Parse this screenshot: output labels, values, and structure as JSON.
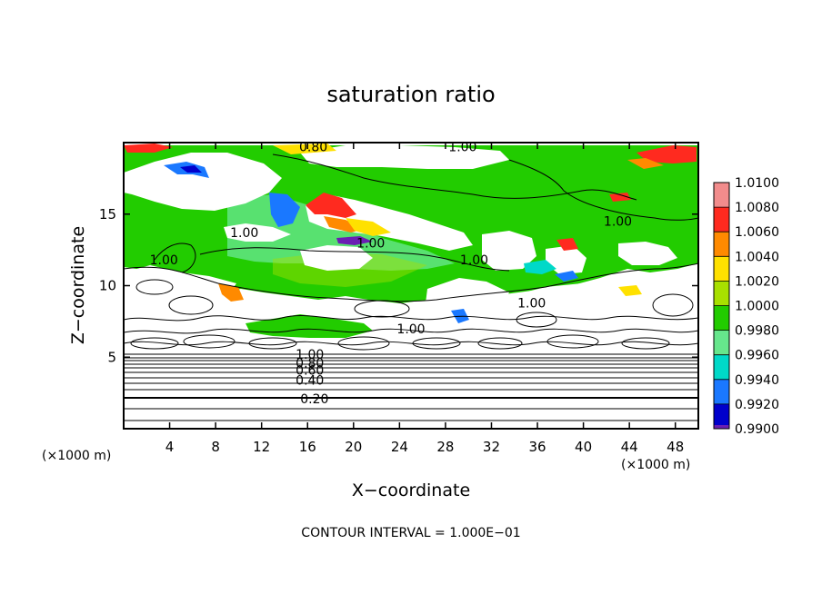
{
  "chart_data": {
    "type": "heatmap",
    "title": "saturation ratio",
    "xlabel": "X−coordinate",
    "ylabel": "Z−coordinate",
    "x_unit_left": "(×1000 m)",
    "x_unit_right": "(×1000 m)",
    "xlim": [
      0,
      50
    ],
    "ylim": [
      0,
      20
    ],
    "x_ticks": [
      4,
      8,
      12,
      16,
      20,
      24,
      28,
      32,
      36,
      40,
      44,
      48
    ],
    "y_ticks": [
      5,
      10,
      15
    ],
    "colorbar": {
      "levels": [
        "1.0100",
        "1.0080",
        "1.0060",
        "1.0040",
        "1.0020",
        "1.0000",
        "0.9980",
        "0.9960",
        "0.9940",
        "0.9920",
        "0.9900"
      ],
      "colors": [
        "#f28c8c",
        "#ff2a1f",
        "#ff8a00",
        "#ffe100",
        "#a8e000",
        "#22cc00",
        "#66e68c",
        "#00d9c8",
        "#1a78ff",
        "#0000cc",
        "#6a1fb3"
      ]
    },
    "contour_labels": [
      {
        "text": "0.80",
        "x": 16.5,
        "z": 19.7
      },
      {
        "text": "1.00",
        "x": 29.5,
        "z": 19.7
      },
      {
        "text": "1.00",
        "x": 10.5,
        "z": 13.7
      },
      {
        "text": "1.00",
        "x": 21.5,
        "z": 13.0
      },
      {
        "text": "1.00",
        "x": 30.5,
        "z": 11.8
      },
      {
        "text": "1.00",
        "x": 43.0,
        "z": 14.5
      },
      {
        "text": "1.00",
        "x": 35.5,
        "z": 8.8
      },
      {
        "text": "1.00",
        "x": 25.0,
        "z": 7.0
      },
      {
        "text": "1.00",
        "x": 3.5,
        "z": 11.8
      },
      {
        "text": "1.00",
        "x": 16.2,
        "z": 5.2
      },
      {
        "text": "0.80",
        "x": 16.2,
        "z": 4.6
      },
      {
        "text": "0.60",
        "x": 16.2,
        "z": 4.1
      },
      {
        "text": "0.40",
        "x": 16.2,
        "z": 3.4
      },
      {
        "text": "0.20",
        "x": 16.6,
        "z": 2.1
      }
    ],
    "contour_interval_text": "CONTOUR INTERVAL = 1.000E−01"
  }
}
